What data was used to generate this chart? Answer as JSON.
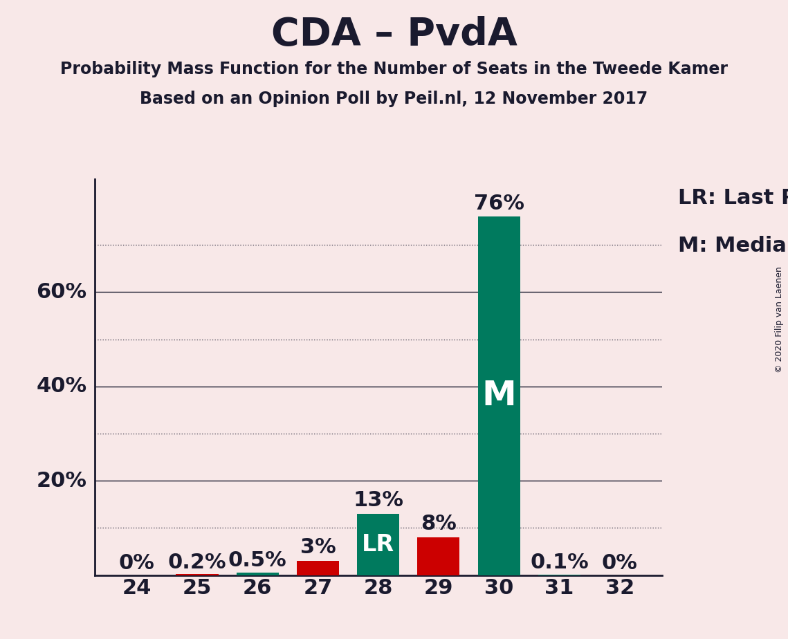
{
  "title": "CDA – PvdA",
  "subtitle1": "Probability Mass Function for the Number of Seats in the Tweede Kamer",
  "subtitle2": "Based on an Opinion Poll by Peil.nl, 12 November 2017",
  "copyright": "© 2020 Filip van Laenen",
  "legend_lr": "LR: Last Result",
  "legend_m": "M: Median",
  "seats": [
    24,
    25,
    26,
    27,
    28,
    29,
    30,
    31,
    32
  ],
  "probabilities": [
    0.0,
    0.002,
    0.005,
    0.03,
    0.13,
    0.08,
    0.76,
    0.001,
    0.0
  ],
  "bar_colors": [
    "#cc0000",
    "#cc0000",
    "#007a5e",
    "#cc0000",
    "#007a5e",
    "#cc0000",
    "#007a5e",
    "#007a5e",
    "#cc0000"
  ],
  "last_result_seat": 28,
  "median_seat": 30,
  "background_color": "#f8e8e8",
  "bar_labels": [
    "0%",
    "0.2%",
    "0.5%",
    "3%",
    "13%",
    "8%",
    "76%",
    "0.1%",
    "0%"
  ],
  "ylim": [
    0,
    0.84
  ],
  "text_color": "#1a1a2e",
  "lr_label_color": "#ffffff",
  "title_fontsize": 40,
  "subtitle_fontsize": 17,
  "axis_tick_fontsize": 22,
  "bar_label_fontsize": 22,
  "legend_fontsize": 22,
  "lr_label_fontsize": 24,
  "m_label_fontsize": 36,
  "copyright_fontsize": 9,
  "solid_grid_levels": [
    0.2,
    0.4,
    0.6
  ],
  "dotted_grid_levels": [
    0.1,
    0.3,
    0.5,
    0.7
  ],
  "ylabel_levels": [
    0.2,
    0.4,
    0.6
  ],
  "ylabel_labels": [
    "20%",
    "40%",
    "60%"
  ]
}
